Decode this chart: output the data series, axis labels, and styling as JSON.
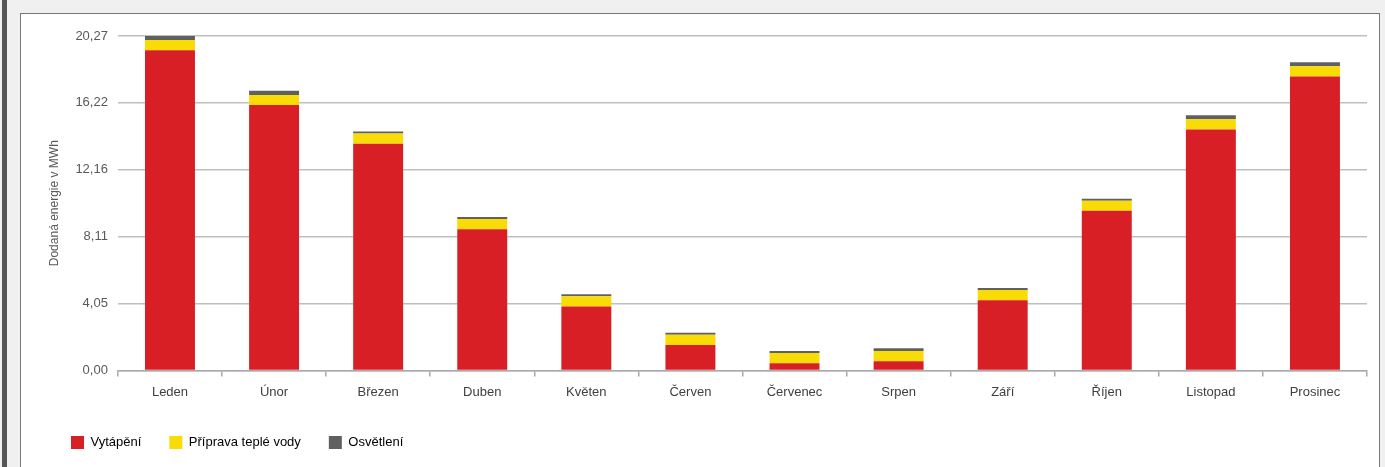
{
  "chart_data": {
    "type": "bar",
    "stacked": true,
    "ylabel": "Dodaná energie v MWh",
    "categories": [
      "Leden",
      "Únor",
      "Březen",
      "Duben",
      "Květen",
      "Červen",
      "Červenec",
      "Srpen",
      "Září",
      "Říjen",
      "Listopad",
      "Prosinec"
    ],
    "series": [
      {
        "name": "Vytápění",
        "color": "#d91f26",
        "values": [
          19.41,
          16.08,
          13.74,
          8.56,
          3.88,
          1.54,
          0.43,
          0.55,
          4.25,
          9.67,
          14.6,
          17.81
        ]
      },
      {
        "name": "Příprava teplé vody",
        "color": "#f9dc06",
        "values": [
          0.62,
          0.62,
          0.62,
          0.62,
          0.62,
          0.62,
          0.62,
          0.62,
          0.62,
          0.62,
          0.62,
          0.62
        ]
      },
      {
        "name": "Osvětlení",
        "color": "#606060",
        "values": [
          0.25,
          0.25,
          0.12,
          0.12,
          0.12,
          0.12,
          0.12,
          0.18,
          0.12,
          0.12,
          0.25,
          0.25
        ]
      }
    ],
    "ylim": [
      0,
      20.27
    ],
    "yticks": [
      {
        "value": 0,
        "label": "0,00"
      },
      {
        "value": 4.05,
        "label": "4,05"
      },
      {
        "value": 8.11,
        "label": "8,11"
      },
      {
        "value": 12.16,
        "label": "12,16"
      },
      {
        "value": 16.22,
        "label": "16,22"
      },
      {
        "value": 20.27,
        "label": "20,27"
      }
    ],
    "grid": "y",
    "legend": "bottom"
  }
}
